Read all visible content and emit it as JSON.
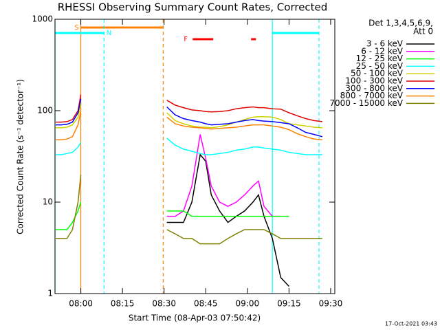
{
  "chart_data": {
    "type": "line",
    "title": "RHESSI Observing Summary Count Rates, Corrected",
    "xlabel": "Start Time (08-Apr-03 07:50:42)",
    "ylabel": "Corrected Count Rate (s⁻¹ detector⁻¹)",
    "footer": "17-Oct-2021 03:43",
    "legend_title": [
      "Det 1,3,4,5,6,9,",
      "Att 0"
    ],
    "legend": "right",
    "log_y": true,
    "xlim": [
      "07:50:42",
      "09:31:30"
    ],
    "xticks": [
      "08:00",
      "08:15",
      "08:30",
      "08:45",
      "09:00",
      "09:15",
      "09:30"
    ],
    "ylim": [
      1,
      1000
    ],
    "yticks": [
      1,
      10,
      100,
      1000
    ],
    "x": [
      "07:51",
      "07:53",
      "07:55",
      "07:57",
      "07:59",
      "08:00",
      "08:15",
      "08:31",
      "08:34",
      "08:37",
      "08:40",
      "08:43",
      "08:45",
      "08:47",
      "08:50",
      "08:53",
      "08:56",
      "08:59",
      "09:02",
      "09:04",
      "09:06",
      "09:09",
      "09:12",
      "09:15",
      "09:18",
      "09:21",
      "09:24",
      "09:27"
    ],
    "series": [
      {
        "name": "3 - 6 keV",
        "color": "#000000",
        "values": [
          null,
          null,
          null,
          null,
          null,
          null,
          null,
          6,
          6,
          6,
          10,
          33,
          28,
          12,
          8,
          6,
          7,
          8,
          10,
          12,
          7,
          4,
          1.5,
          1.2,
          null,
          null,
          null,
          null
        ]
      },
      {
        "name": "6 - 12 keV",
        "color": "#ff00ff",
        "values": [
          null,
          null,
          null,
          null,
          null,
          null,
          null,
          7,
          7,
          8,
          15,
          55,
          30,
          15,
          10,
          9,
          10,
          12,
          15,
          17,
          9,
          7,
          7,
          null,
          null,
          null,
          null,
          null
        ]
      },
      {
        "name": "12 - 25 keV",
        "color": "#00ff00",
        "values": [
          5,
          5,
          5,
          6,
          8,
          10,
          null,
          8,
          8,
          8,
          7,
          7,
          7,
          7,
          7,
          7,
          7,
          7,
          7,
          7,
          7,
          7,
          7,
          7,
          null,
          null,
          null,
          null
        ]
      },
      {
        "name": "25 - 50 keV",
        "color": "#00ffff",
        "values": [
          33,
          33,
          34,
          35,
          40,
          45,
          null,
          50,
          42,
          38,
          36,
          34,
          33,
          33,
          34,
          35,
          37,
          38,
          40,
          40,
          39,
          38,
          37,
          35,
          34,
          33,
          33,
          33
        ]
      },
      {
        "name": "50 - 100 keV",
        "color": "#d0d000",
        "values": [
          65,
          65,
          66,
          70,
          85,
          120,
          null,
          95,
          78,
          72,
          68,
          66,
          66,
          65,
          67,
          70,
          75,
          80,
          85,
          86,
          86,
          85,
          80,
          72,
          70,
          68,
          66,
          65
        ]
      },
      {
        "name": "100 - 300 keV",
        "color": "#e00000",
        "values": [
          75,
          75,
          76,
          80,
          100,
          150,
          null,
          130,
          115,
          108,
          102,
          100,
          98,
          97,
          98,
          100,
          105,
          108,
          110,
          108,
          108,
          105,
          104,
          95,
          88,
          82,
          78,
          76
        ]
      },
      {
        "name": "300 - 800 keV",
        "color": "#0000ff",
        "values": [
          70,
          70,
          71,
          75,
          95,
          135,
          null,
          110,
          90,
          82,
          78,
          75,
          72,
          70,
          71,
          72,
          75,
          78,
          80,
          78,
          77,
          76,
          74,
          72,
          65,
          58,
          55,
          52
        ]
      },
      {
        "name": "800 - 7000 keV",
        "color": "#ff8000",
        "values": [
          48,
          48,
          49,
          52,
          70,
          100,
          null,
          85,
          72,
          68,
          66,
          65,
          64,
          63,
          64,
          65,
          66,
          68,
          70,
          70,
          70,
          68,
          66,
          62,
          56,
          52,
          49,
          48
        ]
      },
      {
        "name": "7000 - 15000 keV",
        "color": "#808000",
        "values": [
          4,
          4,
          4,
          5,
          10,
          20,
          null,
          5,
          4.5,
          4,
          4,
          3.5,
          3.5,
          3.5,
          3.5,
          4,
          4.5,
          5,
          5,
          5,
          5,
          4.5,
          4,
          4,
          4,
          4,
          4,
          4
        ]
      }
    ],
    "flags": [
      {
        "label": "S",
        "color": "#ff8000",
        "intervals": [
          [
            "08:00:00",
            "08:29:40"
          ]
        ]
      },
      {
        "label": "N",
        "color": "#00ffff",
        "intervals": [
          [
            "07:50:42",
            "08:08:24"
          ],
          [
            "09:09:00",
            "09:25:48"
          ]
        ]
      },
      {
        "label": "F",
        "color": "#ff0000",
        "intervals": [
          [
            "08:40:18",
            "08:47:43"
          ],
          [
            "09:01:20",
            "09:03:05"
          ]
        ]
      }
    ]
  }
}
